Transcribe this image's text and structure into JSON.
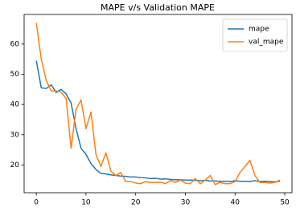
{
  "chart_data": {
    "type": "line",
    "title": "MAPE v/s Validation MAPE",
    "x": [
      0,
      1,
      2,
      3,
      4,
      5,
      6,
      7,
      8,
      9,
      10,
      11,
      12,
      13,
      14,
      15,
      16,
      17,
      18,
      19,
      20,
      21,
      22,
      23,
      24,
      25,
      26,
      27,
      28,
      29,
      30,
      31,
      32,
      33,
      34,
      35,
      36,
      37,
      38,
      39,
      40,
      41,
      42,
      43,
      44,
      45,
      46,
      47,
      48,
      49
    ],
    "series": [
      {
        "name": "mape",
        "color": "#1f77b4",
        "values": [
          54.5,
          45.5,
          45.3,
          46.5,
          44,
          45,
          43.5,
          40.5,
          32,
          25.5,
          23.5,
          20.5,
          18.5,
          17.2,
          17,
          16.7,
          16.5,
          16.3,
          16.2,
          16,
          16,
          15.8,
          15.7,
          15.5,
          15.6,
          15.3,
          15.4,
          15.2,
          15.1,
          15.1,
          15,
          15,
          14.9,
          14.8,
          14.9,
          14.7,
          14.7,
          14.6,
          14.6,
          14.5,
          14.8,
          14.6,
          14.6,
          14.5,
          14.8,
          14.5,
          14.6,
          14.5,
          14.4,
          14.6
        ]
      },
      {
        "name": "val_mape",
        "color": "#ff7f0e",
        "values": [
          67,
          55,
          48,
          44.5,
          44.5,
          44,
          42,
          25.5,
          38.5,
          41.5,
          32,
          37.5,
          23.5,
          19.5,
          24,
          18,
          16.5,
          17.5,
          14.5,
          14.5,
          14,
          13.8,
          14.5,
          14.2,
          14.2,
          14.3,
          13.8,
          14.8,
          14.2,
          15,
          14,
          13.8,
          15.5,
          13.8,
          15,
          16.5,
          13.5,
          14.2,
          13.8,
          13.8,
          14.5,
          17.5,
          19.5,
          21.5,
          16.5,
          14.2,
          14.2,
          14,
          14.2,
          15
        ]
      }
    ],
    "xlim": [
      -2.45,
      51.45
    ],
    "xticks": [
      0,
      10,
      20,
      30,
      40,
      50
    ],
    "ylim": [
      10.8,
      69.8
    ],
    "yticks": [
      20,
      30,
      40,
      50,
      60
    ],
    "legend": "upper right"
  }
}
